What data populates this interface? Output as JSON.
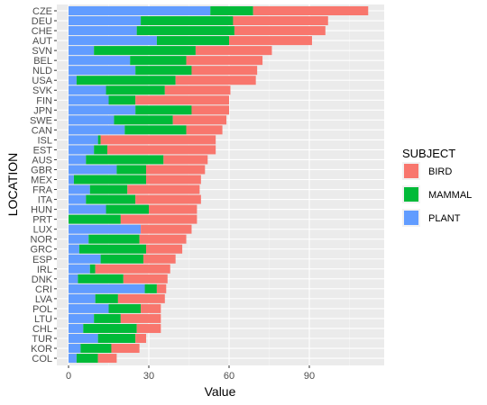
{
  "chart_data": {
    "type": "bar",
    "orientation": "horizontal",
    "stacked": true,
    "xlabel": "Value",
    "ylabel": "LOCATION",
    "xlim": [
      0,
      117
    ],
    "xticks": [
      0,
      30,
      60,
      90
    ],
    "grid": true,
    "legend_title": "SUBJECT",
    "legend_position": "right",
    "categories": [
      "CZE",
      "DEU",
      "CHE",
      "AUT",
      "SVN",
      "BEL",
      "NLD",
      "USA",
      "SVK",
      "FIN",
      "JPN",
      "SWE",
      "CAN",
      "ISL",
      "EST",
      "AUS",
      "GBR",
      "MEX",
      "FRA",
      "ITA",
      "HUN",
      "PRT",
      "LUX",
      "NOR",
      "GRC",
      "ESP",
      "IRL",
      "DNK",
      "CRI",
      "LVA",
      "POL",
      "LTU",
      "CHL",
      "TUR",
      "KOR",
      "COL"
    ],
    "series": [
      {
        "name": "PLANT",
        "color": "#619CFF",
        "values": [
          53,
          27,
          25.5,
          33,
          9.5,
          23,
          25,
          3,
          14,
          15,
          25,
          17,
          21,
          11,
          9.5,
          6.5,
          18,
          2,
          8,
          6.5,
          14,
          0,
          27,
          7.5,
          4,
          12,
          8,
          3.5,
          28.5,
          10,
          15,
          9.5,
          5.5,
          11,
          4.5,
          3
        ]
      },
      {
        "name": "MAMMAL",
        "color": "#00BA38",
        "values": [
          16,
          34.5,
          36.5,
          27,
          38,
          21,
          21,
          37,
          22,
          10,
          21,
          22,
          23,
          1,
          5,
          29,
          11,
          27,
          14,
          18.5,
          16,
          19.5,
          0,
          19,
          25,
          16,
          2,
          17,
          4.5,
          8.5,
          12,
          10,
          20,
          14,
          11.5,
          8
        ]
      },
      {
        "name": "BIRD",
        "color": "#F8766D",
        "values": [
          43,
          35.5,
          34,
          31,
          28.5,
          28.5,
          24.5,
          30,
          24.5,
          35,
          14,
          20,
          13.5,
          43,
          40.5,
          16.5,
          22,
          20.5,
          27,
          24.5,
          18,
          28.5,
          19,
          17.5,
          13.5,
          12,
          28,
          16.5,
          3.5,
          17.5,
          7.5,
          15,
          9,
          4,
          10.5,
          7
        ]
      }
    ]
  }
}
